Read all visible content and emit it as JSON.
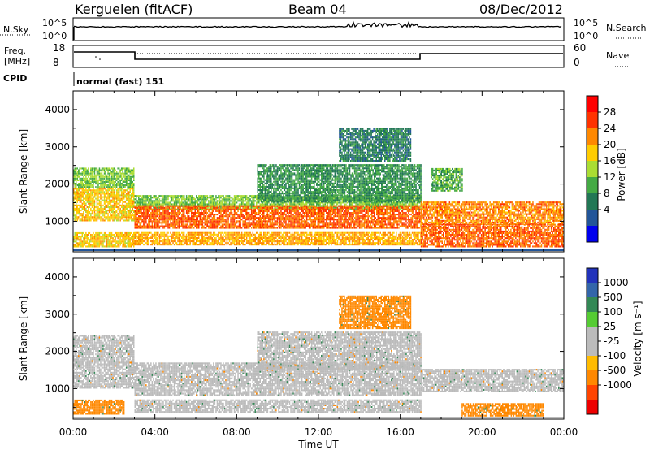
{
  "header": {
    "station": "Kerguelen (fitACF)",
    "beam": "Beam 04",
    "date": "08/Dec/2012"
  },
  "nsky_panel": {
    "left_label": "N.Sky",
    "right_label": "N.Search",
    "left_ticks": [
      "10^5",
      "10^0"
    ],
    "right_ticks": [
      "10^5",
      "10^0"
    ]
  },
  "freq_panel": {
    "left_label_1": "Freq.",
    "left_label_2": "[MHz]",
    "left_ticks": [
      "18",
      "8"
    ],
    "right_label": "Nave",
    "right_ticks": [
      "60",
      "0"
    ]
  },
  "cpid_panel": {
    "label": "CPID",
    "value": "normal (fast) 151"
  },
  "power_colorbar": {
    "label": "Power [dB]",
    "ticks": [
      "28",
      "24",
      "20",
      "16",
      "12",
      "8",
      "4"
    ],
    "colors": [
      "#ff0000",
      "#ff3300",
      "#ff8800",
      "#ffcc00",
      "#aadd33",
      "#44aa44",
      "#227755",
      "#225599",
      "#0000ee"
    ]
  },
  "velocity_colorbar": {
    "label": "Velocity [m s⁻¹]",
    "ticks": [
      "1000",
      "500",
      "100",
      "25",
      "-25",
      "-100",
      "-500",
      "-1000"
    ],
    "colors": [
      "#2233bb",
      "#3366aa",
      "#338855",
      "#55cc33",
      "#bbbbbb",
      "#bbbbbb",
      "#ffbb00",
      "#ff8800",
      "#ff4400",
      "#ee0000"
    ]
  },
  "power_panel_ylabel": "Slant Range [km]",
  "velocity_panel_ylabel": "Slant Range [km]",
  "x_tick_labels": [
    "00:00",
    "04:00",
    "08:00",
    "12:00",
    "16:00",
    "20:00",
    "00:00"
  ],
  "x_label": "Time UT",
  "chart_data": [
    {
      "type": "heatmap",
      "title": "Power",
      "xlabel": "Time UT",
      "ylabel": "Slant Range [km]",
      "xlim": [
        0,
        24
      ],
      "ylim": [
        180,
        4500
      ],
      "y_ticks": [
        1000,
        2000,
        3000,
        4000
      ],
      "color_quantity": "Power [dB]",
      "color_scale": [
        4,
        8,
        12,
        16,
        20,
        24,
        28
      ],
      "regions": [
        {
          "t0": 0.0,
          "t1": 3.0,
          "r0": 1900,
          "r1": 2400,
          "level": 14
        },
        {
          "t0": 0.0,
          "t1": 3.0,
          "r0": 1000,
          "r1": 1900,
          "level": 20
        },
        {
          "t0": 0.0,
          "t1": 3.0,
          "r0": 300,
          "r1": 700,
          "level": 20
        },
        {
          "t0": 3.0,
          "t1": 17.0,
          "r0": 1300,
          "r1": 1700,
          "level": 14
        },
        {
          "t0": 3.0,
          "t1": 17.0,
          "r0": 800,
          "r1": 1400,
          "level": 26
        },
        {
          "t0": 3.0,
          "t1": 17.0,
          "r0": 350,
          "r1": 700,
          "level": 22
        },
        {
          "t0": 9.0,
          "t1": 17.0,
          "r0": 1500,
          "r1": 2500,
          "level": 10
        },
        {
          "t0": 13.0,
          "t1": 16.5,
          "r0": 2600,
          "r1": 3500,
          "level": 8
        },
        {
          "t0": 17.0,
          "t1": 24.0,
          "r0": 900,
          "r1": 1500,
          "level": 24
        },
        {
          "t0": 17.0,
          "t1": 24.0,
          "r0": 300,
          "r1": 900,
          "level": 26
        },
        {
          "t0": 17.5,
          "t1": 19.0,
          "r0": 1800,
          "r1": 2400,
          "level": 12
        }
      ]
    },
    {
      "type": "heatmap",
      "title": "Velocity",
      "xlabel": "Time UT",
      "ylabel": "Slant Range [km]",
      "xlim": [
        0,
        24
      ],
      "ylim": [
        180,
        4500
      ],
      "y_ticks": [
        1000,
        2000,
        3000,
        4000
      ],
      "color_quantity": "Velocity [m s-1]",
      "color_scale": [
        1000,
        500,
        100,
        25,
        -25,
        -100,
        -500,
        -1000
      ],
      "regions": [
        {
          "t0": 0.0,
          "t1": 3.0,
          "r0": 1900,
          "r1": 2400,
          "velocity": 0
        },
        {
          "t0": 0.0,
          "t1": 3.0,
          "r0": 1000,
          "r1": 1900,
          "velocity": 0
        },
        {
          "t0": 0.0,
          "t1": 2.5,
          "r0": 300,
          "r1": 700,
          "velocity": -150
        },
        {
          "t0": 3.0,
          "t1": 17.0,
          "r0": 800,
          "r1": 1700,
          "velocity": 0
        },
        {
          "t0": 3.0,
          "t1": 17.0,
          "r0": 350,
          "r1": 700,
          "velocity": 0
        },
        {
          "t0": 9.0,
          "t1": 17.0,
          "r0": 1500,
          "r1": 2500,
          "velocity": 0
        },
        {
          "t0": 13.0,
          "t1": 16.5,
          "r0": 2600,
          "r1": 3500,
          "velocity": -200
        },
        {
          "t0": 17.0,
          "t1": 24.0,
          "r0": 900,
          "r1": 1500,
          "velocity": 0
        },
        {
          "t0": 19.0,
          "t1": 23.0,
          "r0": 250,
          "r1": 600,
          "velocity": -300
        }
      ]
    }
  ]
}
